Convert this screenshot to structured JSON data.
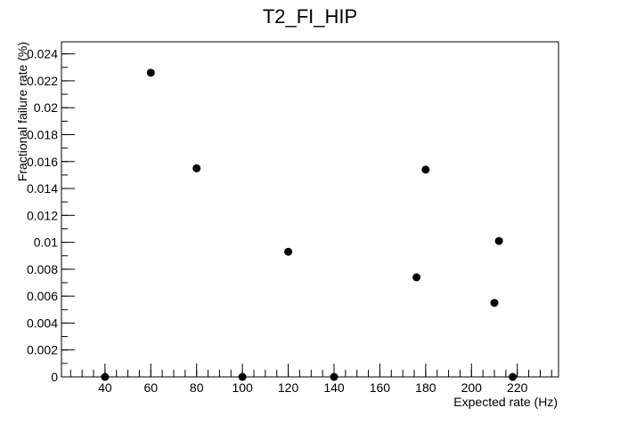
{
  "chart_data": {
    "type": "scatter",
    "title": "T2_FI_HIP",
    "xlabel": "Expected rate (Hz)",
    "ylabel": "Fractional failure rate (%)",
    "xlim": [
      21,
      238
    ],
    "ylim": [
      0,
      0.0249
    ],
    "x_ticks": [
      40,
      60,
      80,
      100,
      120,
      140,
      160,
      180,
      200,
      220
    ],
    "x_tick_labels": [
      "40",
      "60",
      "80",
      "100",
      "120",
      "140",
      "160",
      "180",
      "200",
      "220"
    ],
    "y_ticks": [
      0,
      0.002,
      0.004,
      0.006,
      0.008,
      0.01,
      0.012,
      0.014,
      0.016,
      0.018,
      0.02,
      0.022,
      0.024
    ],
    "y_tick_labels": [
      "0",
      "0.002",
      "0.004",
      "0.006",
      "0.008",
      "0.01",
      "0.012",
      "0.014",
      "0.016",
      "0.018",
      "0.02",
      "0.022",
      "0.024"
    ],
    "grid": false,
    "marker_color": "#000000",
    "points": [
      {
        "x": 40,
        "y": 0
      },
      {
        "x": 60,
        "y": 0.0226
      },
      {
        "x": 80,
        "y": 0.0155
      },
      {
        "x": 100,
        "y": 0
      },
      {
        "x": 120,
        "y": 0.0093
      },
      {
        "x": 140,
        "y": 0
      },
      {
        "x": 176,
        "y": 0.0074
      },
      {
        "x": 180,
        "y": 0.0154
      },
      {
        "x": 210,
        "y": 0.0055
      },
      {
        "x": 212,
        "y": 0.0101
      },
      {
        "x": 218,
        "y": 0
      }
    ]
  }
}
